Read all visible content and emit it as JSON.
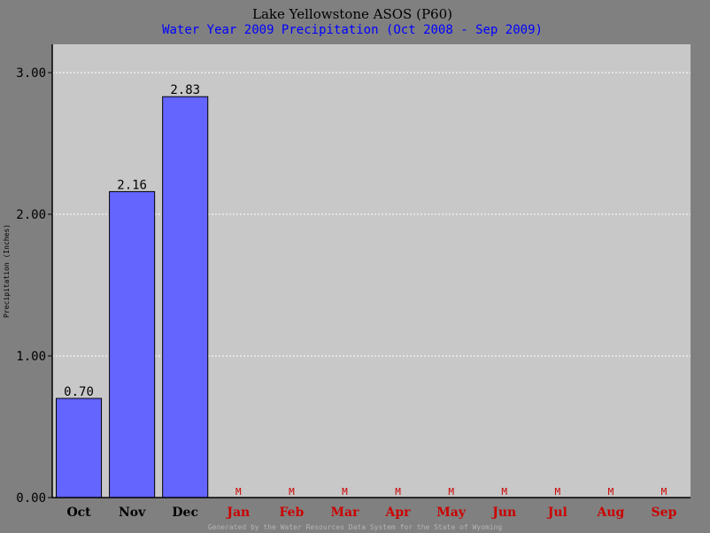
{
  "chart_data": {
    "type": "bar",
    "title": "Lake Yellowstone ASOS (P60)",
    "subtitle": "Water Year 2009 Precipitation (Oct 2008 - Sep 2009)",
    "ylabel": "Precipitation (Inches)",
    "xlabel": "",
    "ylim": [
      0,
      3.2
    ],
    "yticks": [
      0,
      1,
      2,
      3
    ],
    "ytick_labels": [
      "0.00",
      "1.00",
      "2.00",
      "3.00"
    ],
    "grid": true,
    "categories": [
      "Oct",
      "Nov",
      "Dec",
      "Jan",
      "Feb",
      "Mar",
      "Apr",
      "May",
      "Jun",
      "Jul",
      "Aug",
      "Sep"
    ],
    "values": [
      0.7,
      2.16,
      2.83,
      null,
      null,
      null,
      null,
      null,
      null,
      null,
      null,
      null
    ],
    "value_labels": [
      "0.70",
      "2.16",
      "2.83",
      "M",
      "M",
      "M",
      "M",
      "M",
      "M",
      "M",
      "M",
      "M"
    ],
    "footer": "Generated by the Water Resources Data System for the State of Wyoming",
    "colors": {
      "page_background": "#808080",
      "plot_background": "#c8c8c8",
      "bar": "#6464ff",
      "title": "#000000",
      "subtitle": "#0000ff",
      "missing": "#cc0000",
      "footer": "#b4b4b4",
      "grid": "#ffffff"
    }
  }
}
